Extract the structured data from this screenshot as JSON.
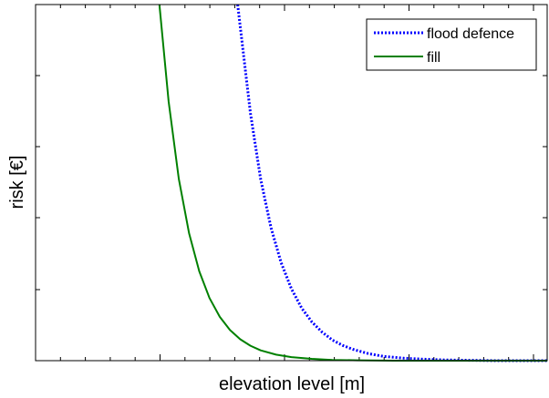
{
  "chart_data": {
    "type": "line",
    "title": "",
    "xlabel": "elevation level [m]",
    "ylabel": "risk [€]",
    "x_ticks_labeled": false,
    "y_ticks_labeled": false,
    "xlim": [
      0,
      1
    ],
    "ylim": [
      0,
      1
    ],
    "grid": false,
    "legend_position": "top-right",
    "series": [
      {
        "name": "flood defence",
        "color": "#0000ff",
        "style": "dotted",
        "x": [
          0.395,
          0.42,
          0.44,
          0.46,
          0.48,
          0.5,
          0.52,
          0.54,
          0.56,
          0.58,
          0.6,
          0.62,
          0.65,
          0.68,
          0.72,
          0.76,
          0.8,
          0.85,
          0.9,
          1.0
        ],
        "y": [
          1.0,
          0.695,
          0.51,
          0.374,
          0.275,
          0.202,
          0.148,
          0.109,
          0.08,
          0.058,
          0.043,
          0.032,
          0.02,
          0.012,
          0.007,
          0.004,
          0.002,
          0.001,
          0.0,
          0.0
        ]
      },
      {
        "name": "fill",
        "color": "#008000",
        "style": "solid",
        "x": [
          0.242,
          0.26,
          0.28,
          0.3,
          0.32,
          0.34,
          0.36,
          0.38,
          0.4,
          0.42,
          0.44,
          0.47,
          0.5,
          0.54,
          0.58,
          0.63,
          0.7,
          0.8,
          0.9,
          1.0
        ],
        "y": [
          1.0,
          0.728,
          0.51,
          0.358,
          0.251,
          0.176,
          0.123,
          0.086,
          0.06,
          0.042,
          0.029,
          0.017,
          0.01,
          0.005,
          0.002,
          0.001,
          0.0,
          0.0,
          0.0,
          0.0
        ]
      }
    ]
  },
  "legend": {
    "entries": [
      "flood defence",
      "fill"
    ]
  }
}
